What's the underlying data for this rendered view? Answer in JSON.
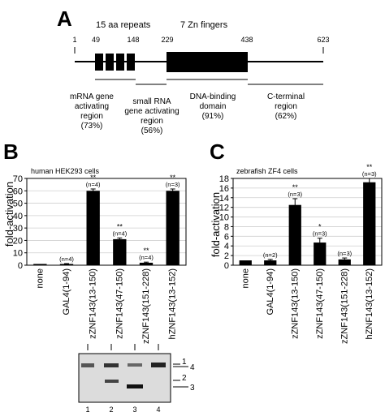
{
  "panel_a": {
    "letter": "A",
    "repeats_label": "15 aa repeats",
    "zn_label": "7 Zn fingers",
    "positions": [
      "1",
      "49",
      "148",
      "229",
      "438",
      "623"
    ],
    "regions": [
      {
        "lines": [
          "mRNA gene",
          "activating",
          "region",
          "(73%)"
        ]
      },
      {
        "lines": [
          "small RNA",
          "gene activating",
          "region",
          "(56%)"
        ]
      },
      {
        "lines": [
          "DNA-binding",
          "domain",
          "(91%)"
        ]
      },
      {
        "lines": [
          "C-terminal",
          "region",
          "(62%)"
        ]
      }
    ]
  },
  "panel_b": {
    "letter": "B",
    "cell_label": "human HEK293 cells",
    "blot_lanes": [
      "1",
      "2",
      "3",
      "4"
    ],
    "blot_bands": [
      "1",
      "4",
      "2",
      "3"
    ]
  },
  "panel_c": {
    "letter": "C",
    "cell_label": "zebrafish ZF4 cells"
  },
  "chart_data": [
    {
      "type": "bar",
      "title": "human HEK293 cells",
      "ylabel": "fold-activation",
      "ylim": [
        0,
        70
      ],
      "yticks": [
        0,
        10,
        20,
        30,
        40,
        50,
        60,
        70
      ],
      "categories": [
        "none",
        "GAL4(1-94)",
        "zZNF143(13-150)",
        "zZNF143(47-150)",
        "zZNF143(151-228)",
        "hZNF143(13-152)"
      ],
      "values": [
        1,
        1,
        60,
        21,
        2,
        60
      ],
      "errors": [
        0,
        0.3,
        1.5,
        1,
        0.5,
        1.5
      ],
      "annotations": [
        {
          "stars": "",
          "n": ""
        },
        {
          "stars": "",
          "n": "(n=4)"
        },
        {
          "stars": "**",
          "n": "(n=4)"
        },
        {
          "stars": "**",
          "n": "(n=4)"
        },
        {
          "stars": "**",
          "n": "(n=4)"
        },
        {
          "stars": "**",
          "n": "(n=3)"
        }
      ]
    },
    {
      "type": "bar",
      "title": "zebrafish ZF4 cells",
      "ylabel": "fold-activation",
      "ylim": [
        0,
        18
      ],
      "yticks": [
        0,
        2,
        4,
        6,
        8,
        10,
        12,
        14,
        16,
        18
      ],
      "categories": [
        "none",
        "GAL4(1-94)",
        "zZNF143(13-150)",
        "zZNF143(47-150)",
        "zZNF143(151-228)",
        "hZNF143(13-152)"
      ],
      "values": [
        1,
        1,
        12.5,
        4.7,
        1.2,
        17.2
      ],
      "errors": [
        0,
        0.2,
        1.3,
        0.9,
        0.3,
        0.8
      ],
      "annotations": [
        {
          "stars": "",
          "n": ""
        },
        {
          "stars": "",
          "n": "(n=2)"
        },
        {
          "stars": "**",
          "n": "(n=3)"
        },
        {
          "stars": "*",
          "n": "(n=3)"
        },
        {
          "stars": "",
          "n": "(n=3)"
        },
        {
          "stars": "**",
          "n": "(n=3)"
        }
      ]
    }
  ]
}
